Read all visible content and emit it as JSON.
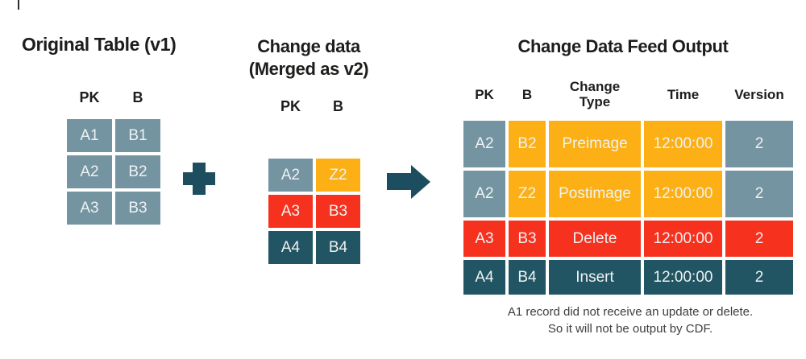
{
  "colors": {
    "background": "#ffffff",
    "slate": "#7594a1",
    "orange": "#fcb016",
    "red": "#f6321f",
    "teal": "#225563",
    "accent_shape": "#1c4e5f",
    "title_text": "#1d1d1b",
    "cell_text": "#eef2f3",
    "note_text": "#3d3d3d"
  },
  "left_panel": {
    "title": "Original Table (v1)",
    "columns": [
      "PK",
      "B"
    ],
    "grid": {
      "rows": [
        [
          "A1",
          "B1"
        ],
        [
          "A2",
          "B2"
        ],
        [
          "A3",
          "B3"
        ]
      ],
      "cell_colors": [
        [
          "slate",
          "slate"
        ],
        [
          "slate",
          "slate"
        ],
        [
          "slate",
          "slate"
        ]
      ]
    }
  },
  "middle_panel": {
    "title_line1": "Change data",
    "title_line2": "(Merged as v2)",
    "columns": [
      "PK",
      "B"
    ],
    "grid": {
      "rows": [
        [
          "A2",
          "Z2"
        ],
        [
          "A3",
          "B3"
        ],
        [
          "A4",
          "B4"
        ]
      ],
      "cell_colors": [
        [
          "slate",
          "orange"
        ],
        [
          "red",
          "red"
        ],
        [
          "teal",
          "teal"
        ]
      ]
    }
  },
  "right_panel": {
    "title": "Change Data Feed Output",
    "columns": [
      "PK",
      "B",
      "Change\nType",
      "Time",
      "Version"
    ],
    "grid": {
      "rows": [
        [
          "A2",
          "B2",
          "Preimage",
          "12:00:00",
          "2"
        ],
        [
          "A2",
          "Z2",
          "Postimage",
          "12:00:00",
          "2"
        ],
        [
          "A3",
          "B3",
          "Delete",
          "12:00:00",
          "2"
        ],
        [
          "A4",
          "B4",
          "Insert",
          "12:00:00",
          "2"
        ]
      ],
      "cell_colors": [
        [
          "slate",
          "orange",
          "orange",
          "orange",
          "slate"
        ],
        [
          "slate",
          "orange",
          "orange",
          "orange",
          "slate"
        ],
        [
          "red",
          "red",
          "red",
          "red",
          "red"
        ],
        [
          "teal",
          "teal",
          "teal",
          "teal",
          "teal"
        ]
      ]
    },
    "note_line1": "A1 record did not receive an update or delete.",
    "note_line2": "So it will not be output by CDF."
  }
}
